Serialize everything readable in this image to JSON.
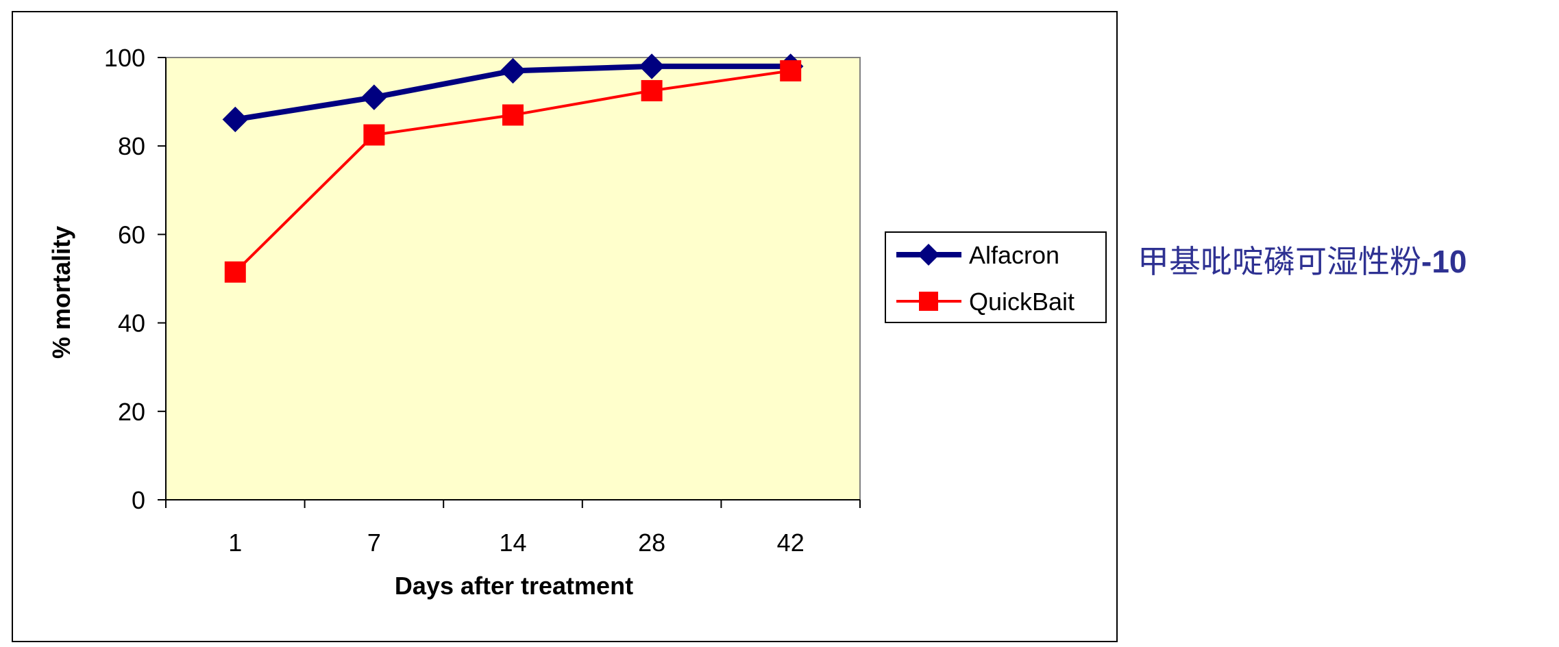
{
  "chart_data": {
    "type": "line",
    "categories": [
      "1",
      "7",
      "14",
      "28",
      "42"
    ],
    "series": [
      {
        "name": "Alfacron",
        "values": [
          86,
          91,
          97,
          98,
          98
        ],
        "color": "#000080",
        "marker": "diamond"
      },
      {
        "name": "QuickBait",
        "values": [
          51.5,
          82.5,
          87,
          92.5,
          97
        ],
        "color": "#ff0000",
        "marker": "square"
      }
    ],
    "xlabel": "Days after treatment",
    "ylabel": "% mortality",
    "ylim": [
      0,
      100
    ],
    "yticks": [
      0,
      20,
      40,
      60,
      80,
      100
    ],
    "plot_background": "#ffffcc",
    "grid": false,
    "legend_position": "right"
  },
  "caption": {
    "main": "甲基吡啶磷可湿性粉",
    "suffix": "-10",
    "color": "#2e3192"
  }
}
